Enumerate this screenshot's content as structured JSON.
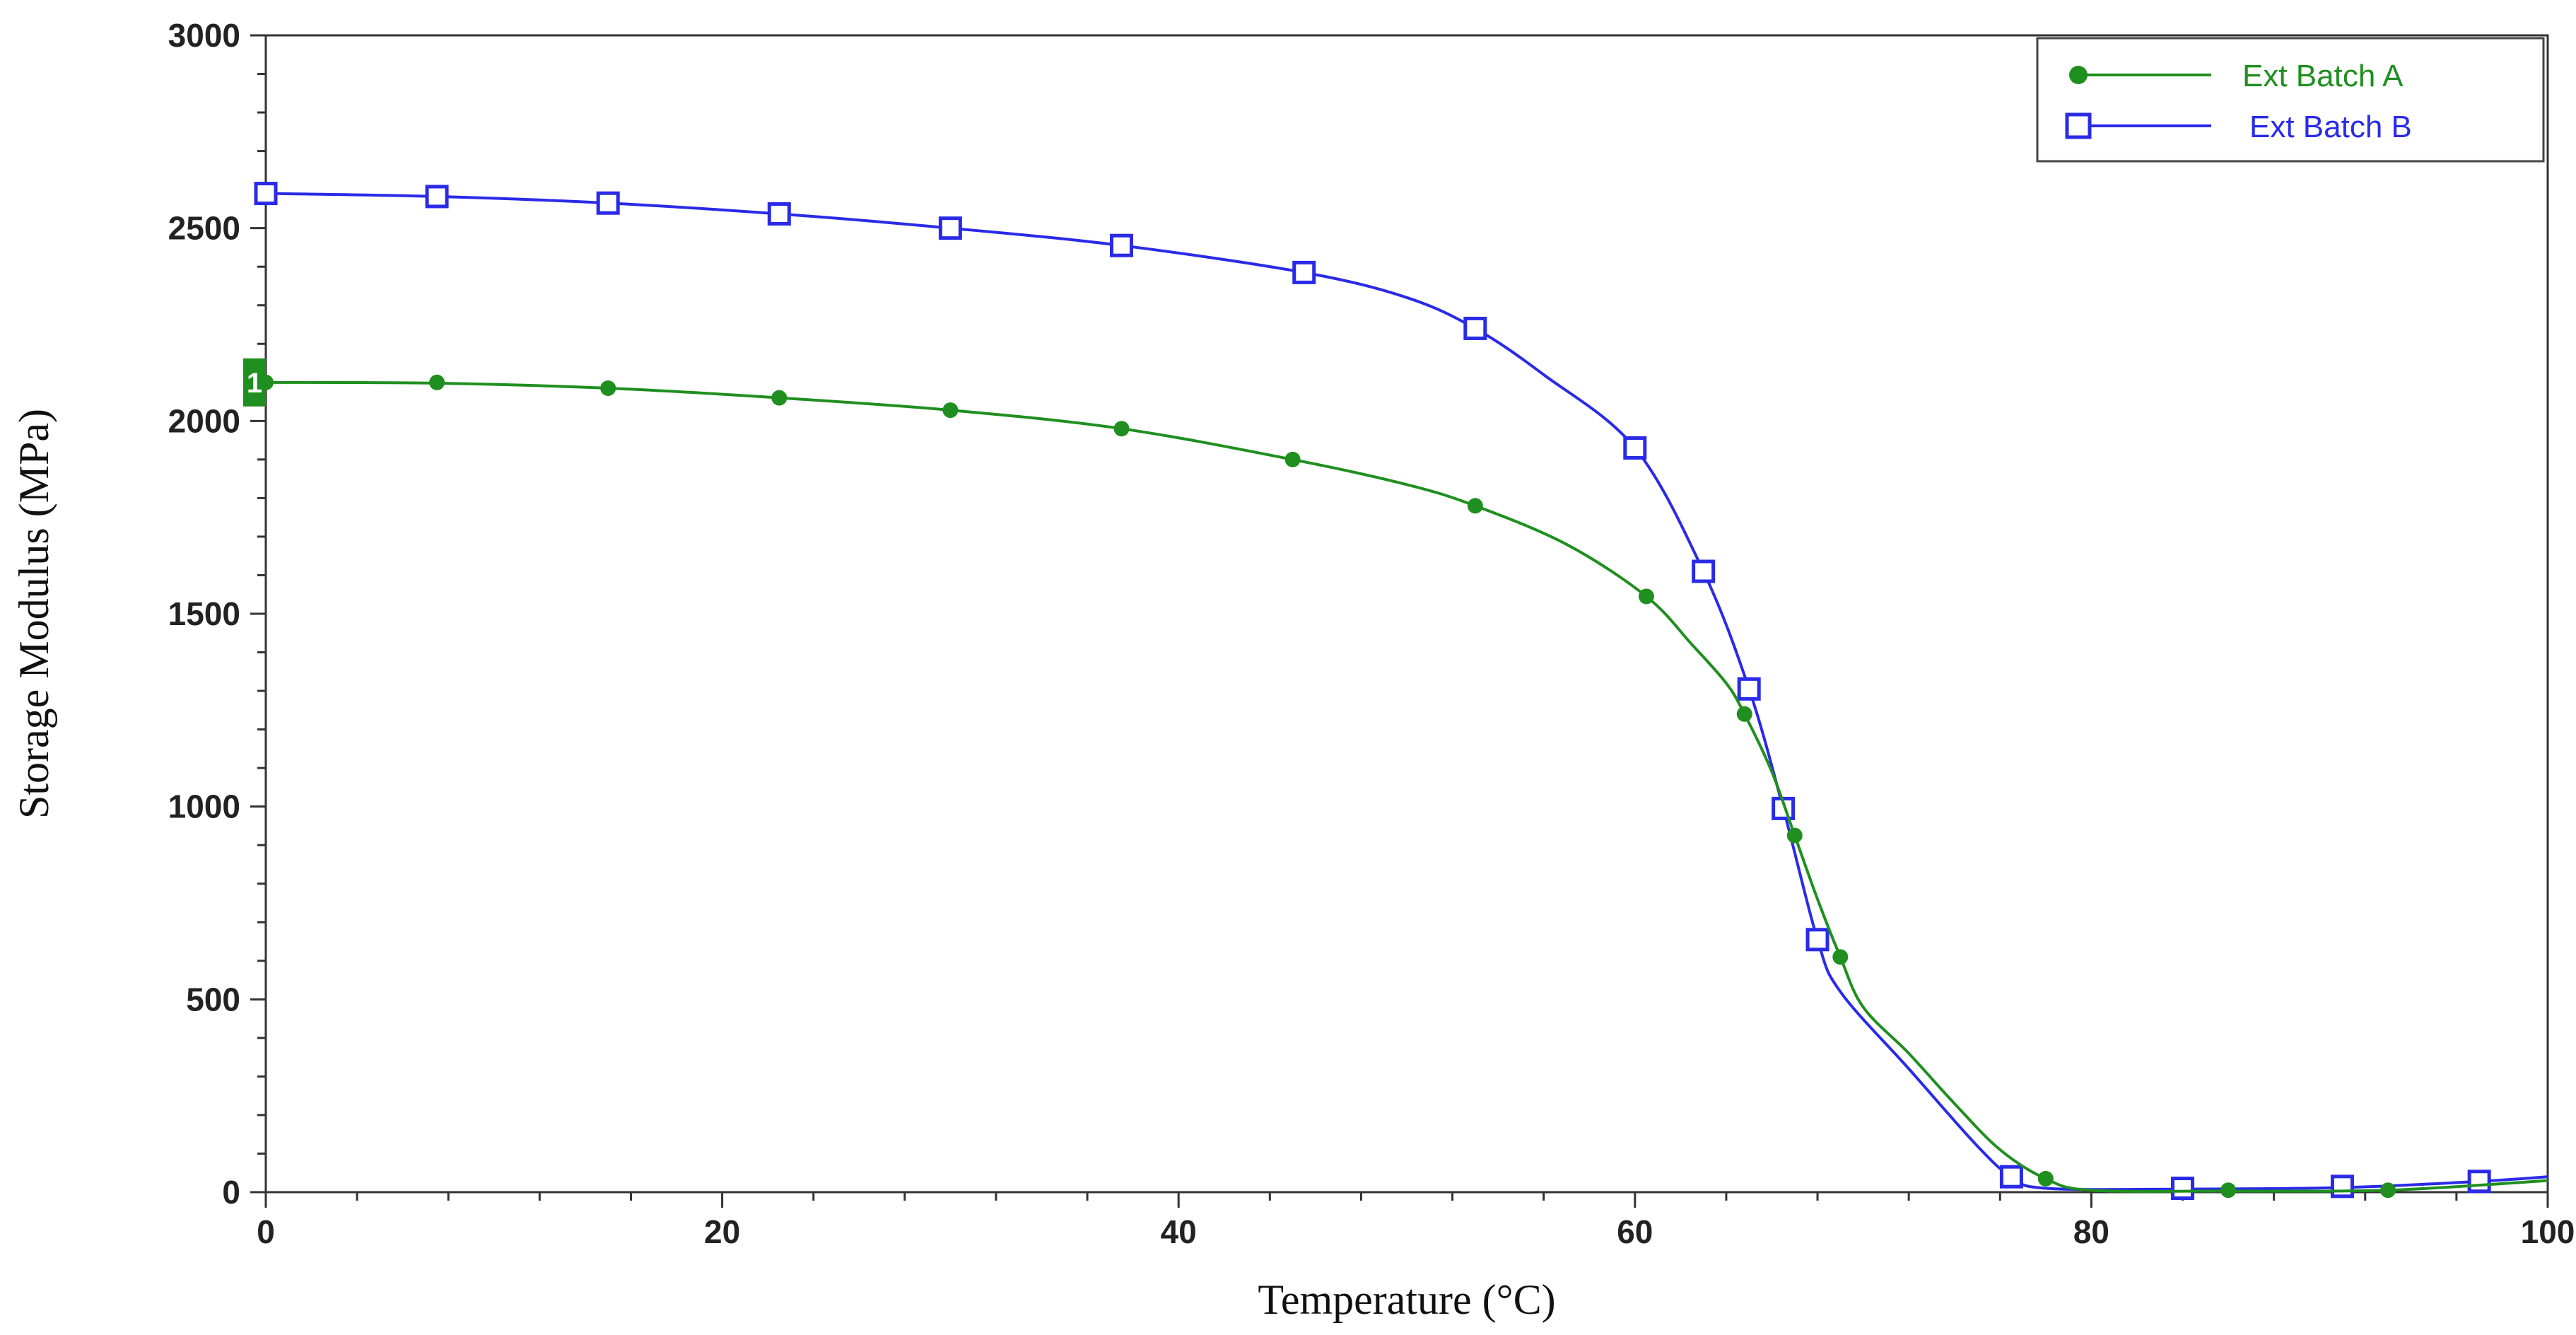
{
  "chart_data": {
    "type": "line",
    "title": "",
    "xlabel": "Temperature (°C)",
    "ylabel": "Storage Modulus (MPa)",
    "xlim": [
      0,
      100
    ],
    "ylim": [
      0,
      3000
    ],
    "x_ticks": [
      0,
      20,
      40,
      60,
      80,
      100
    ],
    "y_ticks": [
      0,
      500,
      1000,
      1500,
      2000,
      2500,
      3000
    ],
    "grid": false,
    "legend_position": "top-right",
    "cursor_marker": {
      "label": "1",
      "y": 2100,
      "color": "#1f8f1f"
    },
    "series": [
      {
        "name": "Ext Batch A",
        "color": "#1f8f1f",
        "marker": "circle",
        "curve": [
          [
            0,
            2100
          ],
          [
            7.5,
            2098
          ],
          [
            15,
            2085
          ],
          [
            22.5,
            2060
          ],
          [
            30,
            2028
          ],
          [
            37.5,
            1980
          ],
          [
            45,
            1900
          ],
          [
            50,
            1835
          ],
          [
            53,
            1780
          ],
          [
            57,
            1680
          ],
          [
            60.5,
            1545
          ],
          [
            62.5,
            1420
          ],
          [
            64,
            1320
          ],
          [
            64.8,
            1240
          ],
          [
            66,
            1090
          ],
          [
            67,
            925
          ],
          [
            68,
            760
          ],
          [
            69,
            610
          ],
          [
            70,
            480
          ],
          [
            72,
            360
          ],
          [
            74,
            230
          ],
          [
            76,
            110
          ],
          [
            78,
            35
          ],
          [
            80,
            5
          ],
          [
            86,
            3
          ],
          [
            93,
            5
          ],
          [
            100,
            30
          ]
        ],
        "markers": [
          [
            0,
            2100
          ],
          [
            7.5,
            2100
          ],
          [
            15,
            2085
          ],
          [
            22.5,
            2060
          ],
          [
            30,
            2028
          ],
          [
            37.5,
            1980
          ],
          [
            45,
            1900
          ],
          [
            53,
            1780
          ],
          [
            60.5,
            1545
          ],
          [
            64.8,
            1240
          ],
          [
            67,
            925
          ],
          [
            69,
            610
          ],
          [
            78,
            35
          ],
          [
            86,
            5
          ],
          [
            93,
            5
          ]
        ]
      },
      {
        "name": "Ext Batch B",
        "color": "#2a2ae8",
        "marker": "square",
        "curve": [
          [
            0,
            2590
          ],
          [
            7.5,
            2582
          ],
          [
            15,
            2565
          ],
          [
            22.5,
            2537
          ],
          [
            30,
            2500
          ],
          [
            37.5,
            2455
          ],
          [
            45.5,
            2385
          ],
          [
            50,
            2320
          ],
          [
            53,
            2240
          ],
          [
            56,
            2120
          ],
          [
            60,
            1930
          ],
          [
            63,
            1610
          ],
          [
            65,
            1305
          ],
          [
            66.5,
            995
          ],
          [
            68,
            655
          ],
          [
            69,
            520
          ],
          [
            72,
            320
          ],
          [
            75,
            120
          ],
          [
            76.5,
            40
          ],
          [
            78,
            10
          ],
          [
            84,
            8
          ],
          [
            91,
            12
          ],
          [
            97,
            28
          ],
          [
            100,
            40
          ]
        ],
        "markers": [
          [
            0,
            2590
          ],
          [
            7.5,
            2582
          ],
          [
            15,
            2565
          ],
          [
            22.5,
            2537
          ],
          [
            30,
            2500
          ],
          [
            37.5,
            2455
          ],
          [
            45.5,
            2385
          ],
          [
            53,
            2240
          ],
          [
            60,
            1930
          ],
          [
            63,
            1610
          ],
          [
            65,
            1305
          ],
          [
            66.5,
            995
          ],
          [
            68,
            655
          ],
          [
            76.5,
            40
          ],
          [
            84,
            10
          ],
          [
            91,
            15
          ],
          [
            97,
            28
          ]
        ]
      }
    ]
  }
}
